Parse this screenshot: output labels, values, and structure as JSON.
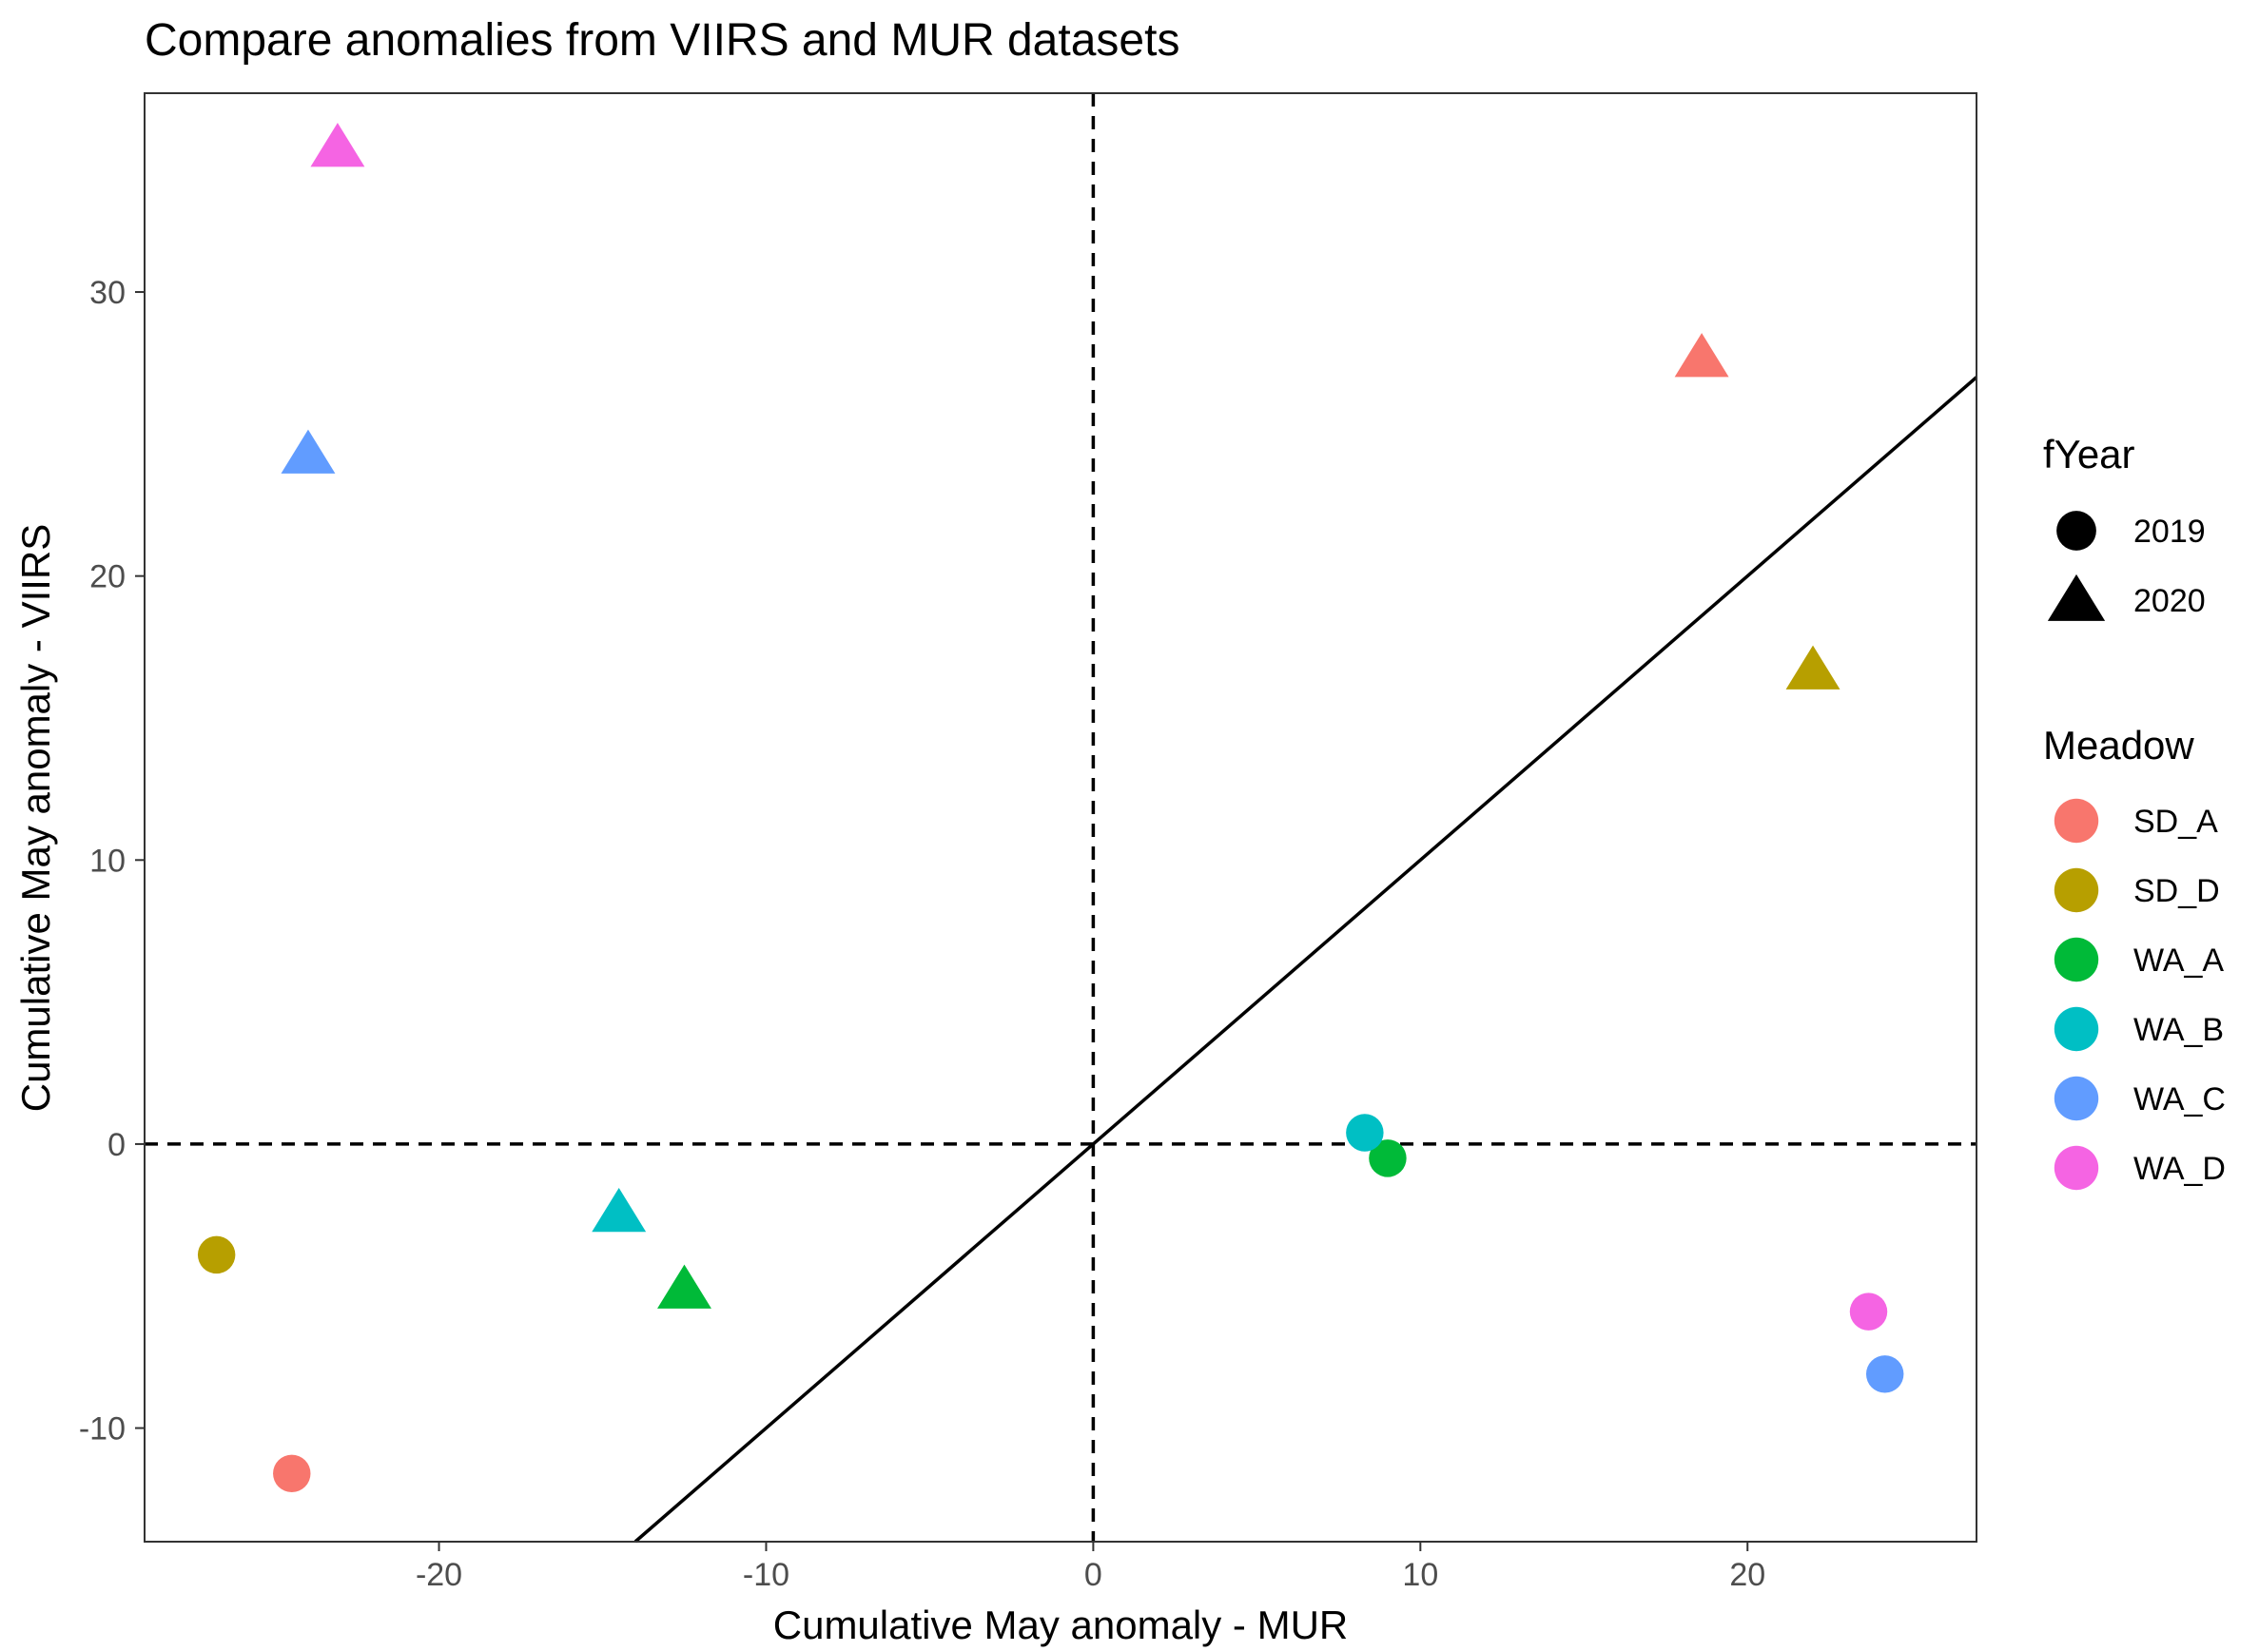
{
  "chart_data": {
    "type": "scatter",
    "title": "Compare anomalies from VIIRS and MUR datasets",
    "xlabel": "Cumulative May anomaly - MUR",
    "ylabel": "Cumulative May anomaly - VIIRS",
    "xlim": [
      -29,
      27
    ],
    "ylim": [
      -14,
      37
    ],
    "xticks": [
      -20,
      -10,
      0,
      10,
      20
    ],
    "yticks": [
      -10,
      0,
      10,
      20,
      30
    ],
    "grid": false,
    "reference_lines": {
      "vertical_dashed_x": 0,
      "horizontal_dashed_y": 0,
      "identity_line": {
        "slope": 1,
        "intercept": 0
      }
    },
    "legend_shape": {
      "title": "fYear",
      "entries": [
        {
          "label": "2019",
          "shape": "circle"
        },
        {
          "label": "2020",
          "shape": "triangle"
        }
      ]
    },
    "legend_color": {
      "title": "Meadow",
      "entries": [
        {
          "label": "SD_A",
          "color": "#F8766D"
        },
        {
          "label": "SD_D",
          "color": "#B79F00"
        },
        {
          "label": "WA_A",
          "color": "#00BA38"
        },
        {
          "label": "WA_B",
          "color": "#00BFC4"
        },
        {
          "label": "WA_C",
          "color": "#619CFF"
        },
        {
          "label": "WA_D",
          "color": "#F564E3"
        }
      ]
    },
    "legend_position": "right",
    "points": [
      {
        "meadow": "SD_A",
        "year": "2019",
        "x": -24.5,
        "y": -11.6
      },
      {
        "meadow": "SD_D",
        "year": "2019",
        "x": -26.8,
        "y": -3.9
      },
      {
        "meadow": "WA_A",
        "year": "2019",
        "x": 9.0,
        "y": -0.5
      },
      {
        "meadow": "WA_B",
        "year": "2019",
        "x": 8.3,
        "y": 0.4
      },
      {
        "meadow": "WA_C",
        "year": "2019",
        "x": 24.2,
        "y": -8.1
      },
      {
        "meadow": "WA_D",
        "year": "2019",
        "x": 23.7,
        "y": -5.9
      },
      {
        "meadow": "SD_A",
        "year": "2020",
        "x": 18.6,
        "y": 27.7
      },
      {
        "meadow": "SD_D",
        "year": "2020",
        "x": 22.0,
        "y": 16.7
      },
      {
        "meadow": "WA_A",
        "year": "2020",
        "x": -12.5,
        "y": -5.1
      },
      {
        "meadow": "WA_B",
        "year": "2020",
        "x": -14.5,
        "y": -2.4
      },
      {
        "meadow": "WA_C",
        "year": "2020",
        "x": -24.0,
        "y": 24.3
      },
      {
        "meadow": "WA_D",
        "year": "2020",
        "x": -23.1,
        "y": 35.1
      }
    ]
  }
}
